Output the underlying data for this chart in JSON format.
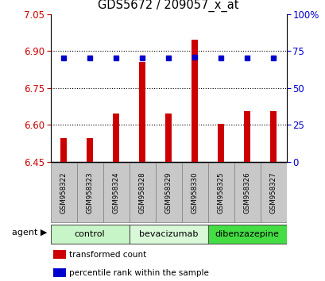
{
  "title": "GDS5672 / 209057_x_at",
  "samples": [
    "GSM958322",
    "GSM958323",
    "GSM958324",
    "GSM958328",
    "GSM958329",
    "GSM958330",
    "GSM958325",
    "GSM958326",
    "GSM958327"
  ],
  "red_values": [
    6.545,
    6.545,
    6.645,
    6.855,
    6.645,
    6.945,
    6.605,
    6.655,
    6.655
  ],
  "blue_values": [
    70,
    70,
    70,
    70,
    70,
    71,
    70,
    70,
    70
  ],
  "ylim_left": [
    6.45,
    7.05
  ],
  "ylim_right": [
    0,
    100
  ],
  "yticks_left": [
    6.45,
    6.6,
    6.75,
    6.9,
    7.05
  ],
  "yticks_right": [
    0,
    25,
    50,
    75,
    100
  ],
  "groups": [
    {
      "label": "control",
      "indices": [
        0,
        1,
        2
      ],
      "color": "#c8f5c8"
    },
    {
      "label": "bevacizumab",
      "indices": [
        3,
        4,
        5
      ],
      "color": "#d8f8d8"
    },
    {
      "label": "dibenzazepine",
      "indices": [
        6,
        7,
        8
      ],
      "color": "#44dd44"
    }
  ],
  "bar_color": "#cc0000",
  "dot_color": "#0000cc",
  "legend_items": [
    "transformed count",
    "percentile rank within the sample"
  ],
  "legend_colors": [
    "#cc0000",
    "#0000cc"
  ],
  "grid_yticks": [
    6.6,
    6.75,
    6.9
  ],
  "background_color": "#ffffff",
  "tick_label_color_left": "#cc0000",
  "tick_label_color_right": "#0000cc",
  "bar_bottom": 6.45,
  "sample_bg_color": "#c8c8c8"
}
